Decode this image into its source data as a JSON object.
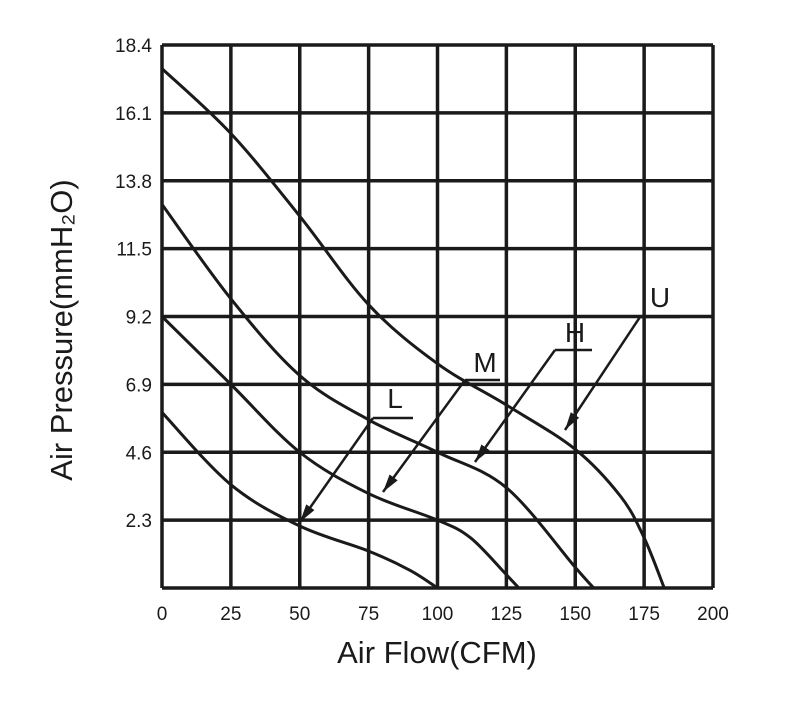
{
  "chart_data": {
    "type": "line",
    "title": "",
    "xlabel": "Air Flow(CFM)",
    "ylabel": "Air Pressure(mmH₂O)",
    "xlim": [
      0,
      200
    ],
    "ylim": [
      0,
      18.4
    ],
    "x_ticks": [
      "0",
      "25",
      "50",
      "75",
      "100",
      "125",
      "150",
      "175",
      "200"
    ],
    "y_ticks": [
      "2.3",
      "4.6",
      "6.9",
      "9.2",
      "11.5",
      "13.8",
      "16.1",
      "18.4"
    ],
    "grid": true,
    "line_color": "#1a1a1a",
    "series": [
      {
        "name": "U",
        "x": [
          0,
          25,
          50,
          75,
          100,
          125,
          150,
          166.5,
          175,
          182.3
        ],
        "y": [
          17.6,
          15.4,
          12.6,
          9.6,
          7.6,
          6.2,
          4.7,
          3.1,
          1.7,
          0
        ]
      },
      {
        "name": "H",
        "x": [
          0,
          25,
          50,
          75,
          100,
          125,
          150,
          156.7
        ],
        "y": [
          13.0,
          9.8,
          7.2,
          5.7,
          4.6,
          3.4,
          0.7,
          0
        ]
      },
      {
        "name": "M",
        "x": [
          0,
          25,
          50,
          75,
          100,
          112,
          125,
          129.5
        ],
        "y": [
          9.2,
          6.9,
          4.6,
          3.2,
          2.3,
          1.7,
          0.45,
          0
        ]
      },
      {
        "name": "L",
        "x": [
          0,
          25,
          50,
          75,
          90,
          100
        ],
        "y": [
          5.95,
          3.5,
          2.1,
          1.25,
          0.6,
          0
        ]
      }
    ]
  }
}
